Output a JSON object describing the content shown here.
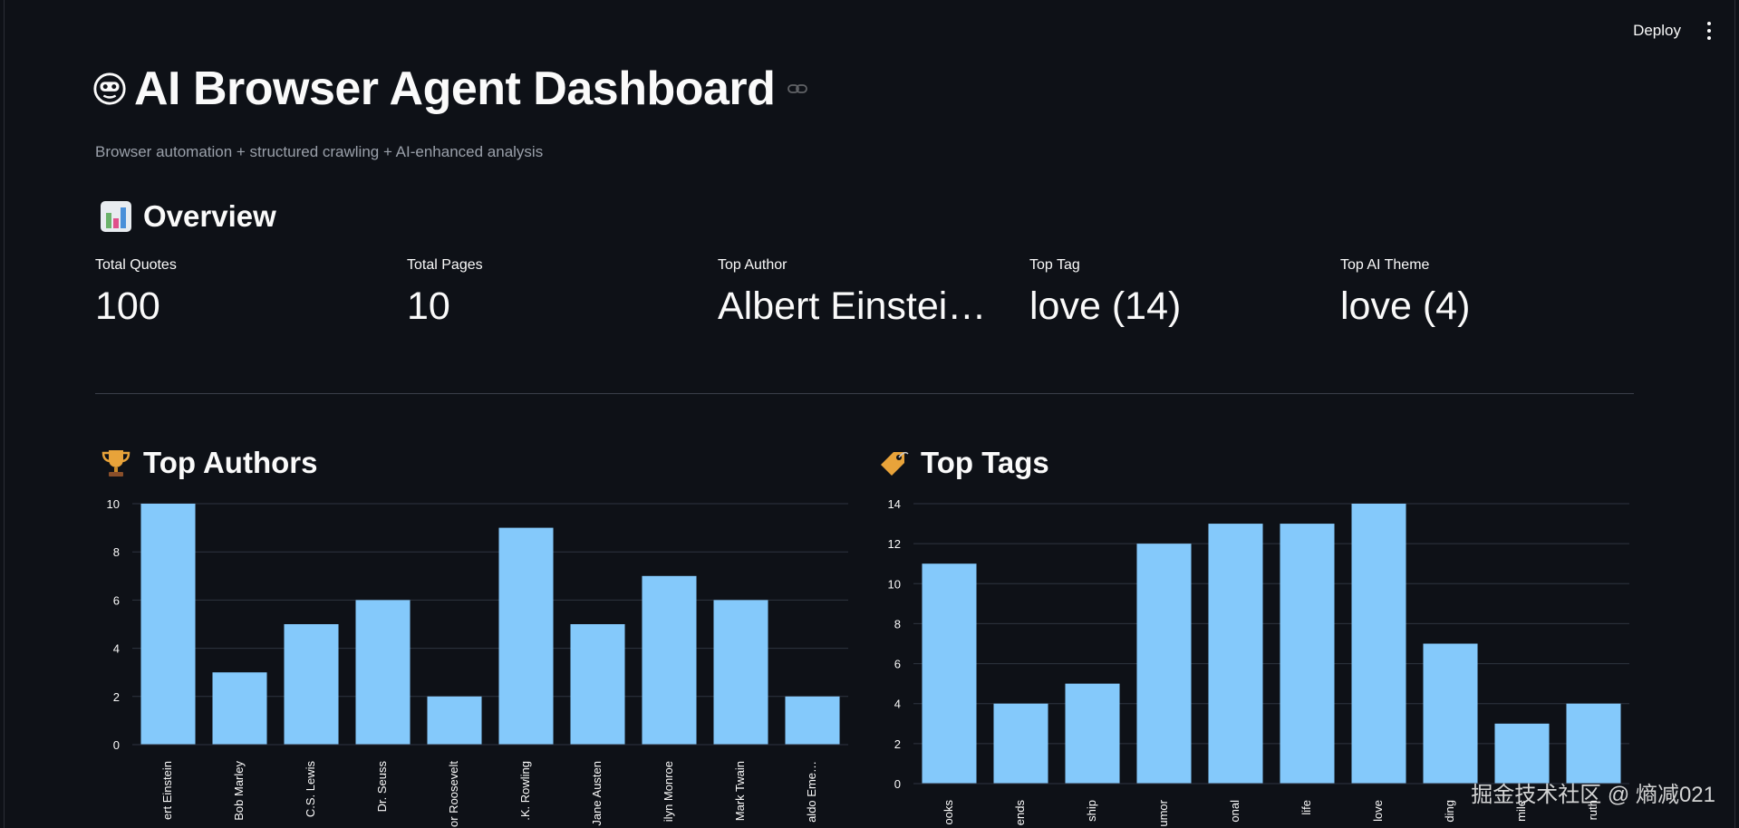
{
  "toolbar": {
    "deploy_label": "Deploy",
    "menu_icon": "kebab-menu-icon"
  },
  "header": {
    "title_icon": "robot-face-icon",
    "title": "AI Browser Agent Dashboard",
    "link_icon": "link-icon",
    "subtitle": "Browser automation + structured crawling + AI-enhanced analysis"
  },
  "overview": {
    "icon": "bar-chart-icon",
    "heading": "Overview",
    "metrics": [
      {
        "label": "Total Quotes",
        "value": "100"
      },
      {
        "label": "Total Pages",
        "value": "10"
      },
      {
        "label": "Top Author",
        "value": "Albert Einstein…"
      },
      {
        "label": "Top Tag",
        "value": "love (14)"
      },
      {
        "label": "Top AI Theme",
        "value": "love (4)"
      }
    ]
  },
  "authors_section": {
    "icon": "trophy-icon",
    "heading": "Top Authors"
  },
  "tags_section": {
    "icon": "tag-icon",
    "heading": "Top Tags"
  },
  "colors": {
    "bar": "#84c9fb",
    "background": "#0e1117",
    "grid": "#2f3440"
  },
  "chart_data": [
    {
      "type": "bar",
      "title": "",
      "categories": [
        "ert Einstein",
        "Bob Marley",
        "C.S. Lewis",
        "Dr. Seuss",
        "or Roosevelt",
        ".K. Rowling",
        "Jane Austen",
        "ilyn Monroe",
        "Mark Twain",
        "aldo Eme…"
      ],
      "values": [
        10,
        3,
        5,
        6,
        2,
        9,
        5,
        7,
        6,
        2
      ],
      "ylim": [
        0,
        10
      ],
      "yticks": [
        0,
        2,
        4,
        6,
        8,
        10
      ],
      "grid": true
    },
    {
      "type": "bar",
      "title": "",
      "categories": [
        "ooks",
        "ends",
        "ship",
        "umor",
        "onal",
        "life",
        "love",
        "ding",
        "mile",
        "ruth"
      ],
      "values": [
        11,
        4,
        5,
        12,
        13,
        13,
        14,
        7,
        3,
        4
      ],
      "ylim": [
        0,
        14
      ],
      "yticks": [
        0,
        2,
        4,
        6,
        8,
        10,
        12,
        14
      ],
      "grid": true
    }
  ],
  "watermark": "掘金技术社区 @ 熵减021"
}
